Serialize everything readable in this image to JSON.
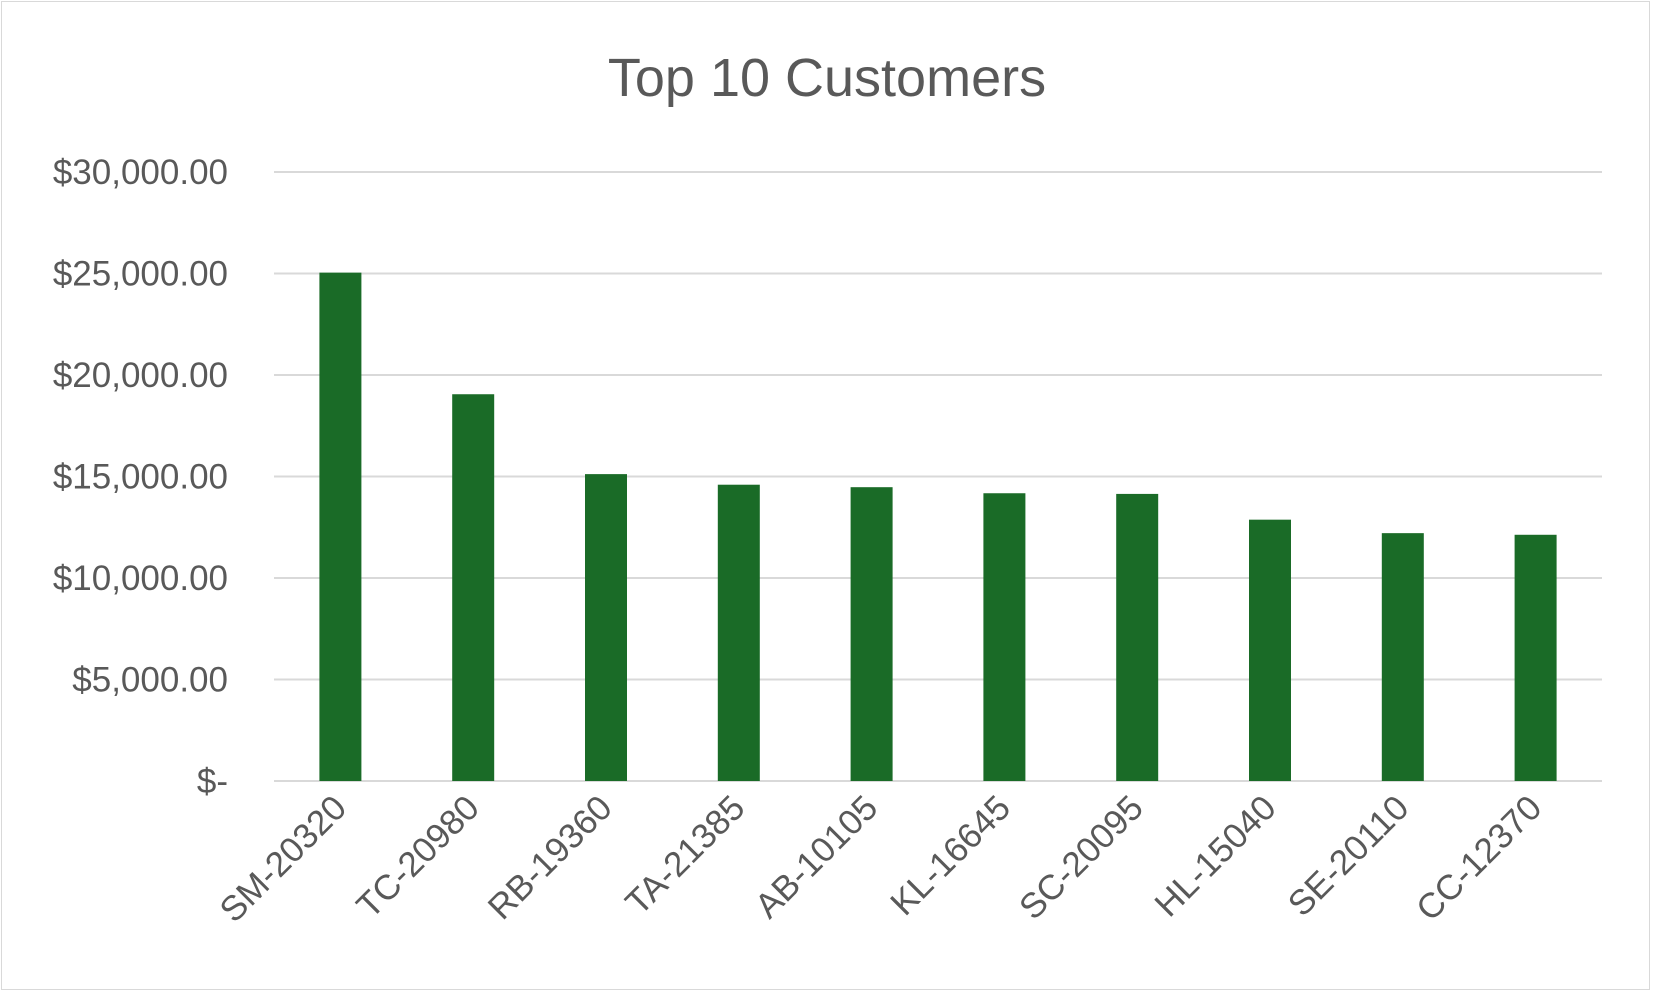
{
  "chart_data": {
    "type": "bar",
    "title": "Top 10 Customers",
    "xlabel": "",
    "ylabel": "",
    "categories": [
      "SM-20320",
      "TC-20980",
      "RB-19360",
      "TA-21385",
      "AB-10105",
      "KL-16645",
      "SC-20095",
      "HL-15040",
      "SE-20110",
      "CC-12370"
    ],
    "values": [
      25043.05,
      19052.22,
      15117.34,
      14595.62,
      14473.57,
      14175.23,
      14142.33,
      12873.3,
      12209.44,
      12129.07
    ],
    "ylim": [
      0,
      30000
    ],
    "yticks": [
      0,
      5000,
      10000,
      15000,
      20000,
      25000,
      30000
    ],
    "ytick_labels": [
      "$-",
      "$5,000.00",
      "$10,000.00",
      "$15,000.00",
      "$20,000.00",
      "$25,000.00",
      "$30,000.00"
    ],
    "bar_color": "#1a6b27",
    "grid": true,
    "legend": "none"
  }
}
